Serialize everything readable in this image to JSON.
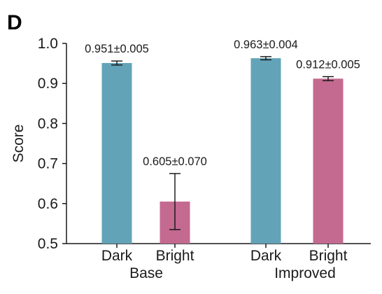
{
  "panel_label": "D",
  "chart_data": {
    "type": "bar",
    "ylabel": "Score",
    "ylim": [
      0.5,
      1.0
    ],
    "yticks": [
      "0.5",
      "0.6",
      "0.7",
      "0.8",
      "0.9",
      "1.0"
    ],
    "ytick_values": [
      0.5,
      0.6,
      0.7,
      0.8,
      0.9,
      1.0
    ],
    "groups": [
      {
        "name": "Base",
        "bars": [
          {
            "category": "Dark",
            "value": 0.951,
            "error": 0.005,
            "label": "0.951±0.005",
            "color": "#62A3B8"
          },
          {
            "category": "Bright",
            "value": 0.605,
            "error": 0.07,
            "label": "0.605±0.070",
            "color": "#C46A91"
          }
        ]
      },
      {
        "name": "Improved",
        "bars": [
          {
            "category": "Dark",
            "value": 0.963,
            "error": 0.004,
            "label": "0.963±0.004",
            "color": "#62A3B8"
          },
          {
            "category": "Bright",
            "value": 0.912,
            "error": 0.005,
            "label": "0.912±0.005",
            "color": "#C46A91"
          }
        ]
      }
    ],
    "grid": false,
    "legend": "none"
  }
}
